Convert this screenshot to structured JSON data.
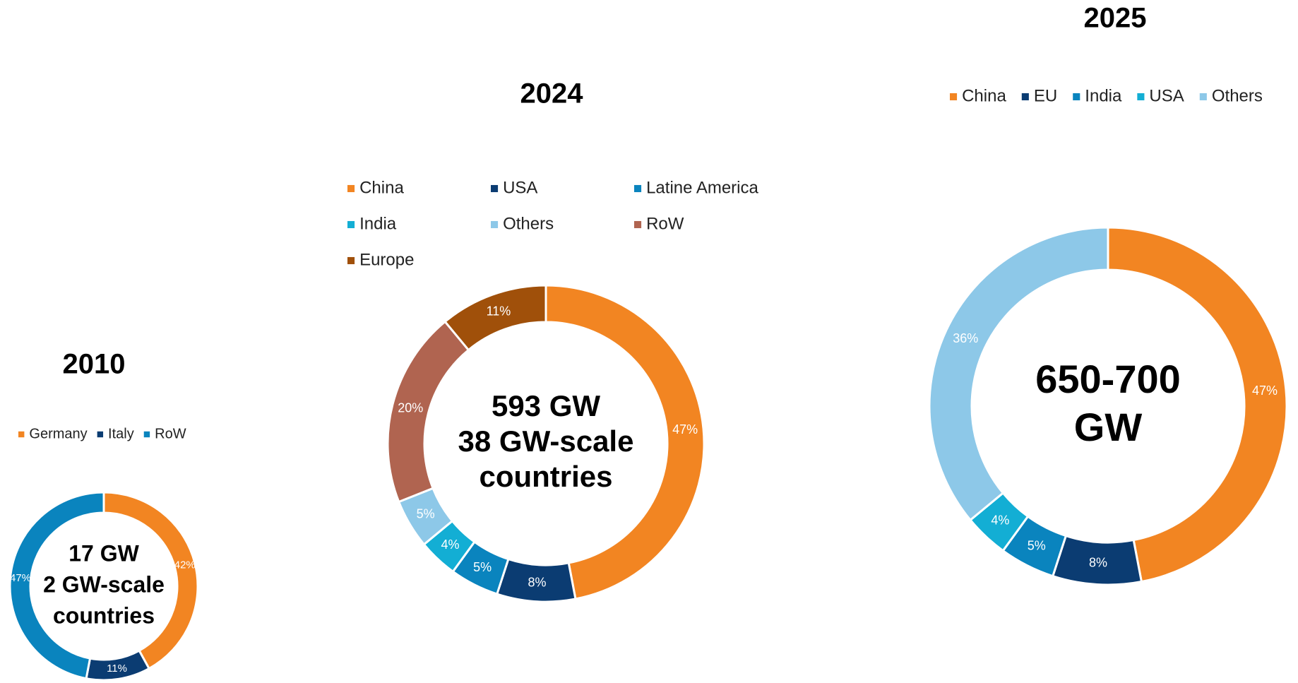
{
  "chart_data": [
    {
      "type": "donut",
      "title": "2010",
      "categories": [
        "Germany",
        "Italy",
        "RoW"
      ],
      "values": [
        42,
        11,
        47
      ],
      "value_labels": [
        "42%",
        "11%",
        "47%"
      ],
      "colors": [
        "#F28522",
        "#0B3C72",
        "#0A84BE"
      ],
      "center_text": [
        "17 GW",
        "2 GW-scale",
        "countries"
      ]
    },
    {
      "type": "donut",
      "title": "2024",
      "categories": [
        "China",
        "USA",
        "Latine America",
        "India",
        "Others",
        "RoW",
        "Europe"
      ],
      "values": [
        47,
        8,
        5,
        4,
        5,
        20,
        11
      ],
      "value_labels": [
        "47%",
        "8%",
        "5%",
        "4%",
        "5%",
        "20%",
        "11%"
      ],
      "colors": [
        "#F28522",
        "#0B3C72",
        "#0A84BE",
        "#13AED4",
        "#8DC8E8",
        "#B06450",
        "#A0500A"
      ],
      "center_text": [
        "593 GW",
        "38 GW-scale",
        "countries"
      ]
    },
    {
      "type": "donut",
      "title": "2025",
      "categories": [
        "China",
        "EU",
        "India",
        "USA",
        "Others"
      ],
      "values": [
        47,
        8,
        5,
        4,
        36
      ],
      "value_labels": [
        "47%",
        "8%",
        "5%",
        "4%",
        "36%"
      ],
      "colors": [
        "#F28522",
        "#0B3C72",
        "#0A84BE",
        "#13AED4",
        "#8DC8E8"
      ],
      "center_text": [
        "650-700",
        "GW"
      ]
    }
  ]
}
